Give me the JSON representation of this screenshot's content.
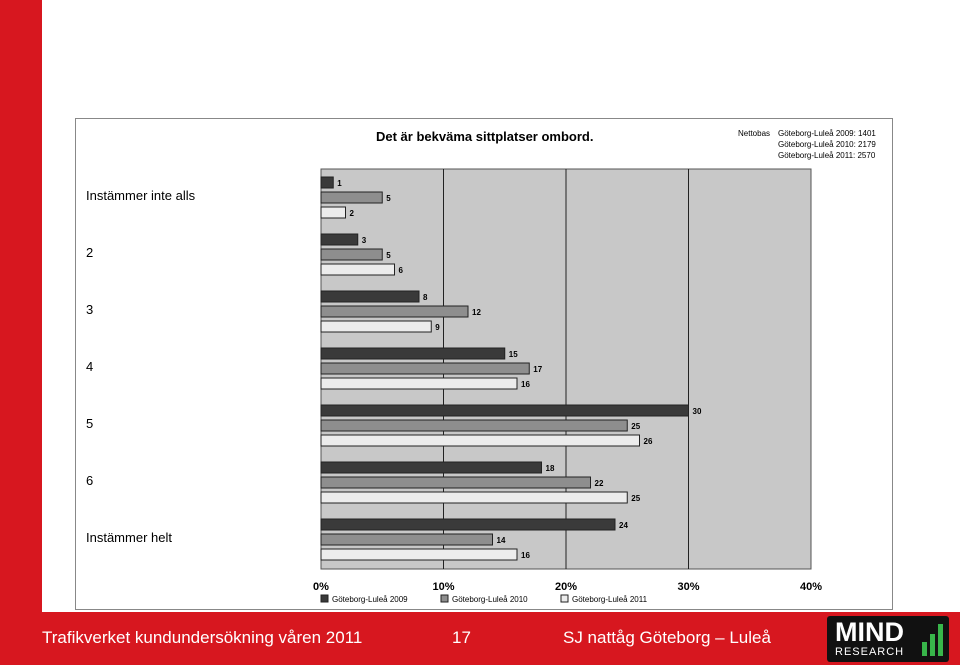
{
  "footer": {
    "left_text": "Trafikverket kundundersökning våren 2011",
    "page_number": "17",
    "right_text": "SJ nattåg Göteborg – Luleå"
  },
  "logo": {
    "mind": "MIND",
    "research": "RESEARCH",
    "accent_color": "#38b54a"
  },
  "colors": {
    "brand_red": "#d7171f",
    "plot_background": "#c8c8c8"
  },
  "chart_data": {
    "type": "bar",
    "orientation": "horizontal",
    "title": "Det är bekväma sittplatser ombord.",
    "nettobas": {
      "label": "Nettobas",
      "entries": [
        "Göteborg-Luleå 2009: 1401",
        "Göteborg-Luleå 2010: 2179",
        "Göteborg-Luleå 2011: 2570"
      ]
    },
    "categories": [
      "Instämmer inte alls",
      "2",
      "3",
      "4",
      "5",
      "6",
      "Instämmer helt"
    ],
    "series": [
      {
        "name": "Göteborg-Luleå 2009",
        "values": [
          1,
          3,
          8,
          15,
          30,
          18,
          24
        ],
        "color": "#3a3a3a"
      },
      {
        "name": "Göteborg-Luleå 2010",
        "values": [
          5,
          5,
          12,
          17,
          25,
          22,
          14
        ],
        "color": "#8e8e8e"
      },
      {
        "name": "Göteborg-Luleå 2011",
        "values": [
          2,
          6,
          9,
          16,
          26,
          25,
          16
        ],
        "color": "#ececec"
      }
    ],
    "xlim": [
      0,
      40
    ],
    "x_ticks": [
      "0%",
      "10%",
      "20%",
      "30%",
      "40%"
    ],
    "grid": true,
    "legend_position": "bottom"
  }
}
